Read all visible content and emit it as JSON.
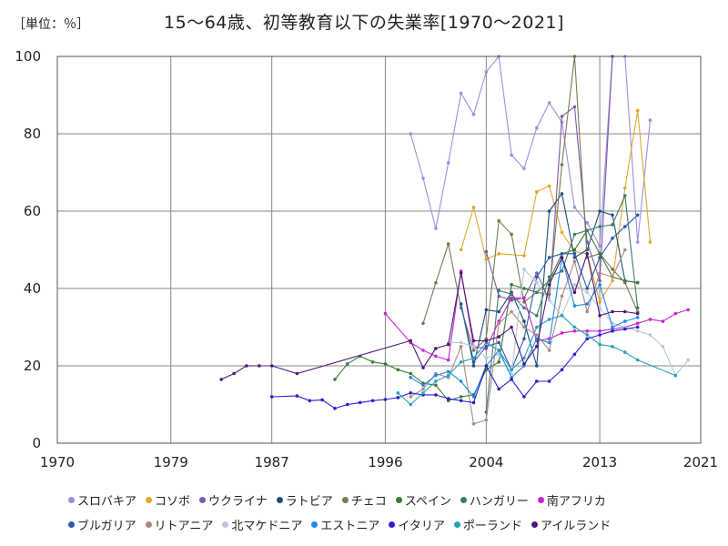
{
  "unit_label": "［単位：％］",
  "chart_data": {
    "type": "line",
    "title": "15～64歳、初等教育以下の失業率[1970～2021]",
    "xlabel": "",
    "ylabel": "",
    "xlim": [
      1970,
      2021
    ],
    "ylim": [
      0,
      100
    ],
    "x_ticks": [
      "1970",
      "1979",
      "1987",
      "1996",
      "2004",
      "2013",
      "2021"
    ],
    "y_ticks": [
      "0",
      "20",
      "40",
      "60",
      "80",
      "100"
    ],
    "grid": true,
    "legend_position": "bottom",
    "series": [
      {
        "name": "スロバキア",
        "color": "#9b8fe0",
        "points": [
          [
            1998,
            80
          ],
          [
            1999,
            68.5
          ],
          [
            2000,
            55.5
          ],
          [
            2001,
            72.5
          ],
          [
            2002,
            90.5
          ],
          [
            2003,
            85
          ],
          [
            2004,
            96
          ],
          [
            2005,
            100
          ],
          [
            2006,
            74.5
          ],
          [
            2007,
            71
          ],
          [
            2008,
            81.5
          ],
          [
            2009,
            88
          ],
          [
            2010,
            83
          ],
          [
            2011,
            61
          ],
          [
            2012,
            57
          ],
          [
            2013,
            51
          ],
          [
            2014,
            100
          ],
          [
            2015,
            100
          ],
          [
            2016,
            52
          ],
          [
            2017,
            83.5
          ]
        ]
      },
      {
        "name": "コソボ",
        "color": "#e0a82c",
        "points": [
          [
            2002,
            50
          ],
          [
            2003,
            61
          ],
          [
            2004,
            47.5
          ],
          [
            2005,
            49
          ],
          [
            2007,
            48.5
          ],
          [
            2008,
            65
          ],
          [
            2009,
            66.5
          ],
          [
            2010,
            54.5
          ],
          [
            2011,
            49.5
          ],
          [
            2012,
            49
          ],
          [
            2013,
            36.5
          ],
          [
            2014,
            42
          ],
          [
            2015,
            66
          ],
          [
            2016,
            86
          ],
          [
            2017,
            52
          ]
        ]
      },
      {
        "name": "ウクライナ",
        "color": "#7c5ba8",
        "points": [
          [
            2004,
            49.5
          ],
          [
            2005,
            38
          ],
          [
            2006,
            37
          ],
          [
            2007,
            37.5
          ],
          [
            2008,
            44
          ],
          [
            2009,
            37
          ],
          [
            2010,
            84.5
          ],
          [
            2011,
            87
          ],
          [
            2012,
            52
          ],
          [
            2013,
            42
          ],
          [
            2014,
            100
          ]
        ]
      },
      {
        "name": "ラトビア",
        "color": "#1f4e79",
        "points": [
          [
            2002,
            36
          ],
          [
            2003,
            20
          ],
          [
            2004,
            34.5
          ],
          [
            2005,
            34
          ],
          [
            2006,
            39
          ],
          [
            2007,
            31.5
          ],
          [
            2008,
            20
          ],
          [
            2009,
            60
          ],
          [
            2010,
            64.5
          ],
          [
            2011,
            48
          ],
          [
            2012,
            50
          ],
          [
            2013,
            60
          ],
          [
            2014,
            59
          ],
          [
            2015,
            42
          ],
          [
            2016,
            41.5
          ]
        ]
      },
      {
        "name": "チェコ",
        "color": "#7a7a52",
        "points": [
          [
            1999,
            31
          ],
          [
            2000,
            41.5
          ],
          [
            2001,
            51.5
          ],
          [
            2002,
            35
          ],
          [
            2003,
            24
          ],
          [
            2004,
            27
          ],
          [
            2005,
            57.5
          ],
          [
            2006,
            54
          ],
          [
            2007,
            36.5
          ],
          [
            2008,
            39
          ],
          [
            2009,
            38.5
          ],
          [
            2010,
            72
          ],
          [
            2011,
            100
          ],
          [
            2012,
            48
          ],
          [
            2013,
            49
          ],
          [
            2014,
            45
          ],
          [
            2015,
            41.5
          ],
          [
            2016,
            34
          ]
        ]
      },
      {
        "name": "スペイン",
        "color": "#3a7a3a",
        "points": [
          [
            1992,
            16.5
          ],
          [
            1993,
            20.5
          ],
          [
            1994,
            22.5
          ],
          [
            1995,
            21
          ],
          [
            1996,
            20.5
          ],
          [
            1997,
            19
          ],
          [
            1998,
            18
          ],
          [
            1999,
            15.5
          ],
          [
            2000,
            15
          ],
          [
            2001,
            11
          ],
          [
            2002,
            12
          ],
          [
            2003,
            12.5
          ],
          [
            2004,
            19
          ],
          [
            2005,
            21
          ],
          [
            2006,
            41
          ],
          [
            2007,
            40
          ],
          [
            2008,
            39
          ],
          [
            2009,
            42
          ],
          [
            2010,
            49
          ],
          [
            2011,
            50
          ],
          [
            2012,
            55
          ],
          [
            2013,
            49
          ],
          [
            2014,
            43
          ],
          [
            2015,
            42
          ],
          [
            2016,
            41.5
          ]
        ]
      },
      {
        "name": "ハンガリー",
        "color": "#3f7a6e",
        "points": [
          [
            2004,
            8
          ],
          [
            2005,
            39.5
          ],
          [
            2006,
            38.5
          ],
          [
            2007,
            35
          ],
          [
            2008,
            33
          ],
          [
            2009,
            43
          ],
          [
            2010,
            44.5
          ],
          [
            2011,
            54
          ],
          [
            2012,
            55
          ],
          [
            2013,
            56
          ],
          [
            2014,
            56.5
          ],
          [
            2015,
            64
          ],
          [
            2016,
            35
          ]
        ]
      },
      {
        "name": "南アフリカ",
        "color": "#cc22cc",
        "points": [
          [
            1996,
            33.5
          ],
          [
            1998,
            26
          ],
          [
            1999,
            24
          ],
          [
            2000,
            22.5
          ],
          [
            2001,
            21.5
          ],
          [
            2002,
            44.5
          ],
          [
            2003,
            25
          ],
          [
            2004,
            24.5
          ],
          [
            2005,
            31.5
          ],
          [
            2006,
            37.5
          ],
          [
            2007,
            37.5
          ],
          [
            2008,
            26.5
          ],
          [
            2009,
            27
          ],
          [
            2010,
            28.5
          ],
          [
            2011,
            29
          ],
          [
            2012,
            29
          ],
          [
            2013,
            29
          ],
          [
            2014,
            29.5
          ],
          [
            2015,
            30
          ],
          [
            2016,
            31
          ],
          [
            2017,
            32
          ],
          [
            2018,
            31.5
          ],
          [
            2019,
            33.5
          ],
          [
            2020,
            34.5
          ]
        ]
      },
      {
        "name": "ブルガリア",
        "color": "#2a5aa8",
        "points": [
          [
            2002,
            36
          ],
          [
            2003,
            21
          ],
          [
            2004,
            25
          ],
          [
            2005,
            26
          ],
          [
            2006,
            19
          ],
          [
            2007,
            27
          ],
          [
            2008,
            43
          ],
          [
            2009,
            48
          ],
          [
            2010,
            49
          ],
          [
            2011,
            49
          ],
          [
            2012,
            40
          ],
          [
            2013,
            48
          ],
          [
            2014,
            53
          ],
          [
            2015,
            56
          ],
          [
            2016,
            59
          ]
        ]
      },
      {
        "name": "リトアニア",
        "color": "#a88a80",
        "points": [
          [
            1998,
            12
          ],
          [
            1999,
            14
          ],
          [
            2000,
            18
          ],
          [
            2001,
            17
          ],
          [
            2002,
            25
          ],
          [
            2003,
            5
          ],
          [
            2004,
            6
          ],
          [
            2005,
            31
          ],
          [
            2006,
            34
          ],
          [
            2007,
            30
          ],
          [
            2008,
            28
          ],
          [
            2009,
            24
          ],
          [
            2010,
            38
          ],
          [
            2011,
            47
          ],
          [
            2012,
            34
          ],
          [
            2013,
            44
          ],
          [
            2014,
            43
          ],
          [
            2015,
            50
          ]
        ]
      },
      {
        "name": "北マケドニア",
        "color": "#b8c8d8",
        "points": [
          [
            2001,
            26
          ],
          [
            2002,
            26
          ],
          [
            2003,
            25
          ],
          [
            2004,
            22
          ],
          [
            2005,
            23
          ],
          [
            2006,
            18
          ],
          [
            2007,
            45
          ],
          [
            2008,
            41.5
          ],
          [
            2009,
            37
          ],
          [
            2010,
            33
          ],
          [
            2011,
            41
          ],
          [
            2012,
            39
          ],
          [
            2013,
            35
          ],
          [
            2014,
            31
          ],
          [
            2015,
            30
          ],
          [
            2016,
            29
          ],
          [
            2017,
            28
          ],
          [
            2018,
            25
          ],
          [
            2019,
            17.5
          ],
          [
            2020,
            21.5
          ]
        ]
      },
      {
        "name": "エストニア",
        "color": "#1e88e5",
        "points": [
          [
            1998,
            17
          ],
          [
            1999,
            15
          ],
          [
            2000,
            17.5
          ],
          [
            2001,
            18.5
          ],
          [
            2002,
            16
          ],
          [
            2003,
            12
          ],
          [
            2004,
            20
          ],
          [
            2005,
            24
          ],
          [
            2006,
            17
          ],
          [
            2007,
            20
          ],
          [
            2008,
            27
          ],
          [
            2009,
            26
          ],
          [
            2010,
            48
          ],
          [
            2011,
            35.5
          ],
          [
            2012,
            36
          ],
          [
            2013,
            41
          ],
          [
            2014,
            30
          ],
          [
            2015,
            31.5
          ],
          [
            2016,
            32.5
          ]
        ]
      },
      {
        "name": "イタリア",
        "color": "#2a1fd0",
        "points": [
          [
            1987,
            12
          ],
          [
            1989,
            12.2
          ],
          [
            1990,
            11
          ],
          [
            1991,
            11.2
          ],
          [
            1992,
            9
          ],
          [
            1993,
            10
          ],
          [
            1994,
            10.5
          ],
          [
            1995,
            11
          ],
          [
            1996,
            11.3
          ],
          [
            1997,
            11.8
          ],
          [
            1998,
            13
          ],
          [
            1999,
            12.5
          ],
          [
            2000,
            12.5
          ],
          [
            2001,
            11.5
          ],
          [
            2002,
            11
          ],
          [
            2003,
            10.5
          ],
          [
            2004,
            20
          ],
          [
            2005,
            14
          ],
          [
            2006,
            16.5
          ],
          [
            2007,
            12
          ],
          [
            2008,
            16
          ],
          [
            2009,
            16
          ],
          [
            2010,
            19
          ],
          [
            2011,
            23
          ],
          [
            2012,
            27
          ],
          [
            2013,
            28
          ],
          [
            2014,
            29
          ],
          [
            2015,
            29.5
          ],
          [
            2016,
            30
          ]
        ]
      },
      {
        "name": "ポーランド",
        "color": "#2aa0b8",
        "points": [
          [
            1997,
            13
          ],
          [
            1998,
            10
          ],
          [
            1999,
            13
          ],
          [
            2000,
            16
          ],
          [
            2001,
            17.5
          ],
          [
            2002,
            21
          ],
          [
            2003,
            22
          ],
          [
            2004,
            26
          ],
          [
            2005,
            24
          ],
          [
            2006,
            19
          ],
          [
            2007,
            22
          ],
          [
            2008,
            30
          ],
          [
            2009,
            32
          ],
          [
            2010,
            33
          ],
          [
            2011,
            30
          ],
          [
            2012,
            28
          ],
          [
            2013,
            25.5
          ],
          [
            2014,
            25
          ],
          [
            2015,
            23.5
          ],
          [
            2016,
            21.5
          ],
          [
            2019,
            17.5
          ]
        ]
      },
      {
        "name": "アイルランド",
        "color": "#4a1a7a",
        "points": [
          [
            1983,
            16.5
          ],
          [
            1984,
            18
          ],
          [
            1985,
            20
          ],
          [
            1986,
            20
          ],
          [
            1987,
            20
          ],
          [
            1989,
            18
          ],
          [
            1998,
            26.5
          ],
          [
            1999,
            19.5
          ],
          [
            2000,
            24.5
          ],
          [
            2001,
            25.5
          ],
          [
            2002,
            44
          ],
          [
            2003,
            26.5
          ],
          [
            2004,
            26.5
          ],
          [
            2005,
            27.5
          ],
          [
            2006,
            30
          ],
          [
            2007,
            20.5
          ],
          [
            2008,
            25
          ],
          [
            2009,
            41
          ],
          [
            2010,
            48
          ],
          [
            2011,
            39
          ],
          [
            2012,
            49
          ],
          [
            2013,
            33
          ],
          [
            2014,
            34
          ],
          [
            2015,
            34
          ],
          [
            2016,
            33.5
          ]
        ]
      }
    ]
  }
}
